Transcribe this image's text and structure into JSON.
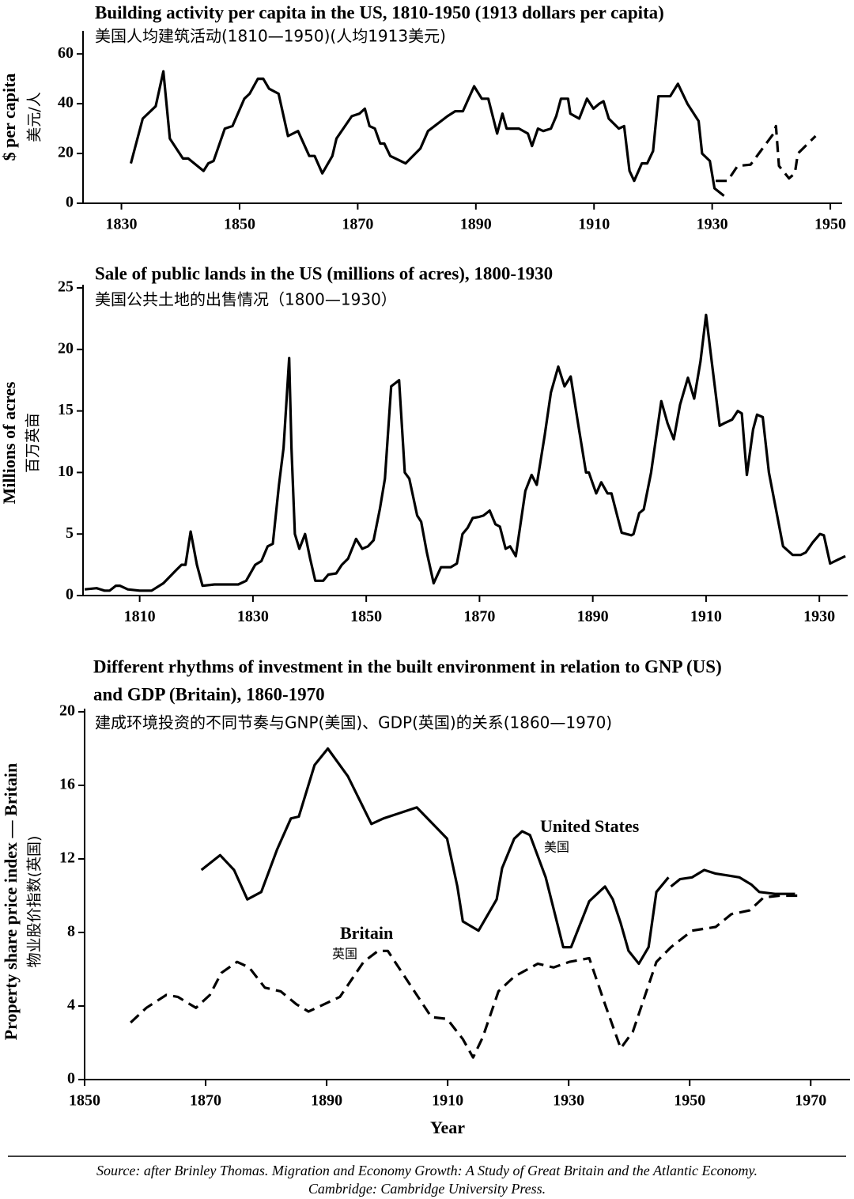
{
  "chart_data": [
    {
      "type": "line",
      "title": "Building activity per capita in the US, 1810-1950 (1913 dollars per capita)",
      "subtitle": "美国人均建筑活动(1810—1950)(人均1913美元)",
      "ylabel": [
        "$ per capita",
        "美元/人"
      ],
      "xlim": [
        1823.5,
        1952
      ],
      "xticks": [
        1830,
        1850,
        1870,
        1890,
        1910,
        1930,
        1950
      ],
      "ylim": [
        0,
        68
      ],
      "yticks": [
        0,
        20,
        40,
        60
      ],
      "series": [
        {
          "color": "#000000",
          "style": "solid",
          "x": [
            1831.6,
            1833.6,
            1835.8,
            1837.1,
            1838.2,
            1840.4,
            1841.3,
            1843.9,
            1844.7,
            1845.6,
            1847.5,
            1848.8,
            1850.8,
            1851.7,
            1853.1,
            1854,
            1855,
            1856.6,
            1858.2,
            1859.9,
            1861.8,
            1862.7,
            1864,
            1865.7,
            1866.4,
            1869,
            1870.3,
            1871.2,
            1872,
            1872.9,
            1873.8,
            1874.5,
            1875.5,
            1878.1,
            1880.6,
            1881.9,
            1885.2,
            1886.5,
            1887.8,
            1889.7,
            1891,
            1892.1,
            1893.6,
            1894.5,
            1895.2,
            1897.3,
            1898.8,
            1899.5,
            1900.5,
            1901.4,
            1902.7,
            1903.6,
            1904.4,
            1905.6,
            1906,
            1907.5,
            1908.8,
            1909.9,
            1910.9,
            1911.6,
            1912.5,
            1914.2,
            1915.1,
            1916,
            1916.8,
            1918.1,
            1919,
            1920,
            1920.9,
            1922.9,
            1924.2,
            1925.8,
            1927.7,
            1928.3,
            1929.6,
            1930.4,
            1932
          ],
          "values": [
            16,
            34,
            39,
            53,
            26,
            18,
            18,
            13,
            16,
            17,
            30,
            31,
            42,
            44,
            50,
            50,
            46,
            44,
            27,
            29,
            19,
            19,
            12,
            19,
            26,
            35,
            36,
            38,
            31,
            30,
            24,
            24,
            19,
            16,
            22,
            29,
            35,
            37,
            37,
            47,
            42,
            42,
            28,
            36,
            30,
            30,
            28,
            23,
            30,
            29,
            30,
            35,
            42,
            42,
            36,
            34,
            42,
            38,
            40,
            41,
            34,
            30,
            31,
            13,
            9,
            16,
            16,
            21,
            43,
            43,
            48,
            40,
            33,
            20,
            17,
            6,
            3
          ]
        },
        {
          "color": "#000000",
          "style": "dashed",
          "x": [
            1930.6,
            1932.6,
            1934.3,
            1936.5,
            1940.4,
            1940.8,
            1941.3,
            1943,
            1944,
            1944.5,
            1947.5
          ],
          "values": [
            9,
            9,
            15,
            15.5,
            28,
            31,
            15,
            10,
            12,
            20,
            27
          ]
        }
      ]
    },
    {
      "type": "line",
      "title": "Sale of public lands in the US (millions of acres), 1800-1930",
      "subtitle": "美国公共土地的出售情况（1800—1930）",
      "ylabel": [
        "Millions of acres",
        "百万英亩"
      ],
      "xlim": [
        1800,
        1935
      ],
      "xticks": [
        1810,
        1830,
        1850,
        1870,
        1890,
        1910,
        1930
      ],
      "ylim": [
        0,
        25
      ],
      "yticks": [
        0,
        5,
        10,
        15,
        20,
        25
      ],
      "series": [
        {
          "color": "#000000",
          "style": "solid",
          "x": [
            1800.3,
            1802.4,
            1803.8,
            1804.7,
            1805.8,
            1806.5,
            1807.9,
            1810,
            1812.1,
            1814.2,
            1816.3,
            1817.4,
            1818.1,
            1819,
            1820.1,
            1821.1,
            1823.2,
            1826,
            1827.4,
            1828.8,
            1830.4,
            1831.5,
            1832.6,
            1833.5,
            1834.6,
            1835.4,
            1836.4,
            1836.8,
            1837.4,
            1838.2,
            1839.2,
            1840.1,
            1841,
            1842.4,
            1843.3,
            1844.7,
            1845.7,
            1846.8,
            1848.2,
            1849.3,
            1850.3,
            1851.3,
            1852.4,
            1853.3,
            1854.4,
            1855.8,
            1856.8,
            1857.6,
            1859,
            1859.7,
            1860.7,
            1861.9,
            1863.2,
            1864.9,
            1866,
            1867,
            1867.9,
            1868.8,
            1870,
            1870.7,
            1871.8,
            1872.8,
            1873.6,
            1874.6,
            1875.4,
            1876.4,
            1878.1,
            1879.2,
            1880.1,
            1881.5,
            1882.6,
            1883.9,
            1885,
            1886.1,
            1887.4,
            1888.8,
            1889.3,
            1889.9,
            1890.6,
            1891.5,
            1892.6,
            1893.3,
            1894.3,
            1895.1,
            1896.8,
            1897.2,
            1898.2,
            1899,
            1900.3,
            1902.1,
            1903.2,
            1904.3,
            1905.4,
            1906.8,
            1907.9,
            1909,
            1910,
            1911,
            1912.4,
            1913.2,
            1914.6,
            1915.6,
            1916.3,
            1917.2,
            1918.3,
            1919,
            1920,
            1921.1,
            1923.6,
            1925.3,
            1926.7,
            1927.6,
            1928.8,
            1930.1,
            1930.8,
            1931.9,
            1933.2,
            1934.6
          ],
          "values": [
            0.5,
            0.6,
            0.4,
            0.4,
            0.8,
            0.8,
            0.5,
            0.4,
            0.4,
            1,
            2,
            2.5,
            2.5,
            5.2,
            2.5,
            0.8,
            0.9,
            0.9,
            0.9,
            1.2,
            2.5,
            2.8,
            4,
            4.2,
            9,
            12,
            19.3,
            12,
            5,
            3.8,
            5,
            3,
            1.2,
            1.2,
            1.7,
            1.8,
            2.5,
            3,
            4.6,
            3.8,
            4,
            4.5,
            7,
            9.5,
            17,
            17.5,
            10,
            9.5,
            6.5,
            6,
            3.5,
            1,
            2.3,
            2.3,
            2.6,
            5,
            5.5,
            6.3,
            6.4,
            6.5,
            6.9,
            5.8,
            5.6,
            3.8,
            4,
            3.2,
            8.5,
            9.8,
            9,
            13,
            16.5,
            18.6,
            17,
            17.8,
            14,
            10,
            10,
            9.2,
            8.3,
            9.2,
            8.3,
            8.3,
            6.5,
            5.1,
            4.9,
            5,
            6.7,
            7,
            10,
            15.8,
            14,
            12.7,
            15.5,
            17.7,
            16,
            19,
            22.8,
            19,
            13.8,
            14,
            14.3,
            15,
            14.8,
            9.8,
            13.5,
            14.7,
            14.5,
            10,
            4,
            3.3,
            3.3,
            3.5,
            4.3,
            5,
            4.9,
            2.6,
            2.9,
            3.2
          ]
        }
      ]
    },
    {
      "type": "line",
      "title": [
        "Different rhythms of investment in the built environment in relation to GNP (US)",
        "and GDP (Britain), 1860-1970"
      ],
      "subtitle": "建成环境投资的不同节奏与GNP(美国)、GDP(英国)的关系(1860—1970)",
      "ylabel": [
        "Property share price index — Britain",
        "物业股价指数(英国)"
      ],
      "xlabel": "Year",
      "annotations": [
        "United States",
        "美国",
        "Britain",
        "英国"
      ],
      "xlim": [
        1850,
        1976.5
      ],
      "xticks": [
        1850,
        1870,
        1890,
        1910,
        1930,
        1950,
        1970
      ],
      "ylim": [
        0,
        20
      ],
      "yticks": [
        0,
        4,
        8,
        12,
        16,
        20
      ],
      "series": [
        {
          "color": "#000000",
          "style": "solid",
          "x": [
            1869.3,
            1872.4,
            1874.7,
            1876.9,
            1879.2,
            1881.8,
            1884.1,
            1885.4,
            1888,
            1890.2,
            1893.5,
            1897.4,
            1899.4,
            1904.9,
            1909.9,
            1911.6,
            1912.5,
            1915.1,
            1918.1,
            1919,
            1921,
            1922.3,
            1923.6,
            1926.2,
            1929.1,
            1930.4,
            1933.4,
            1936,
            1937.3,
            1938.6,
            1939.9,
            1941.6,
            1943.2,
            1944.5,
            1946.5,
            null,
            1946.9,
            1948.4,
            1950.4,
            1952.4,
            1954.3,
            1956.3,
            1958.2,
            1960.2,
            1961.5,
            1964.1,
            1967.4
          ],
          "values": [
            11.4,
            12.2,
            11.4,
            9.8,
            10.2,
            12.5,
            14.2,
            14.3,
            17.1,
            18,
            16.5,
            13.9,
            14.2,
            14.8,
            13.1,
            10.5,
            8.6,
            8.1,
            9.8,
            11.5,
            13.1,
            13.5,
            13.3,
            11,
            7.2,
            7.2,
            9.7,
            10.5,
            9.8,
            8.5,
            7,
            6.3,
            7.2,
            10.2,
            11,
            null,
            10.5,
            10.9,
            11,
            11.4,
            11.2,
            11.1,
            11,
            10.6,
            10.2,
            10.1,
            10.1
          ]
        },
        {
          "color": "#000000",
          "style": "dashed",
          "x": [
            1857.6,
            1860.2,
            1863.5,
            1865.4,
            1868.4,
            1870.7,
            1872.6,
            1875.2,
            1877.2,
            1879.8,
            1882.4,
            1885,
            1887,
            1892.2,
            1896.1,
            1898.5,
            1900.1,
            1903.3,
            1907.3,
            1909.9,
            1912.5,
            1914.2,
            1915.8,
            1918.4,
            1921,
            1924.9,
            1927.5,
            1930.1,
            1933.4,
            1936,
            1938.6,
            1940.6,
            1944.5,
            1946.9,
            1950.4,
            1954.3,
            1956.9,
            1959.9,
            1962.2,
            1964.8,
            1968
          ],
          "values": [
            3.1,
            3.9,
            4.6,
            4.5,
            3.9,
            4.6,
            5.8,
            6.4,
            6.1,
            5,
            4.8,
            4.1,
            3.7,
            4.5,
            6.4,
            7,
            7,
            5.4,
            3.4,
            3.3,
            2.2,
            1.2,
            2.3,
            4.8,
            5.6,
            6.3,
            6.1,
            6.4,
            6.6,
            4.1,
            1.7,
            2.6,
            6.4,
            7.2,
            8.1,
            8.3,
            9,
            9.2,
            9.9,
            10,
            10
          ]
        }
      ]
    }
  ],
  "source": [
    "Source: after Brinley Thomas. Migration and Economy Growth: A Study of Great Britain and the Atlantic Economy.",
    "Cambridge: Cambridge University Press."
  ]
}
